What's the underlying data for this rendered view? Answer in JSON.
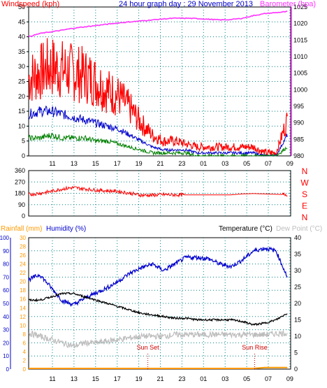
{
  "colors": {
    "wind": "#ff0000",
    "gust_fill": "#ff0000",
    "avg": "#0000cc",
    "low": "#008000",
    "baro": "#ff33ff",
    "dir": "#ff0000",
    "rain": "#ff9900",
    "hum": "#0000cc",
    "temp": "#000000",
    "dew": "#bdbdbd",
    "axis": "#0000cc",
    "grid": "#008080",
    "sun": "#cc0000"
  },
  "chart_data": [
    {
      "type": "line",
      "title": "24 hour graph day : 29 November 2013",
      "left_axis_label": "Windspeed (kph)",
      "right_axis_label": "Barometer (hpa)",
      "x_tick_labels": [
        "11",
        "13",
        "15",
        "17",
        "19",
        "21",
        "23",
        "01",
        "03",
        "05",
        "07",
        "09"
      ],
      "hours": [
        10,
        11,
        12,
        13,
        14,
        15,
        16,
        17,
        18,
        19,
        20,
        21,
        22,
        23,
        0,
        1,
        2,
        3,
        4,
        5,
        6,
        7,
        8,
        9
      ],
      "y_left_range": [
        0,
        50
      ],
      "y_left_ticks": [
        "0",
        "5",
        "10",
        "15",
        "20",
        "25",
        "30",
        "35",
        "40",
        "45",
        "50"
      ],
      "y_right_range": [
        980,
        1025
      ],
      "y_right_ticks": [
        "980",
        "985",
        "990",
        "995",
        "1000",
        "1005",
        "1010",
        "1015",
        "1020",
        "1025"
      ],
      "grid": true,
      "series": [
        {
          "key": "gust",
          "values": [
            26,
            28,
            30,
            29,
            28,
            27,
            25,
            22,
            20,
            16,
            11,
            7,
            5,
            5,
            4,
            3,
            3,
            3,
            3,
            3,
            3,
            1,
            1,
            12
          ]
        },
        {
          "key": "avg",
          "values": [
            14,
            15,
            15,
            14,
            13,
            12,
            11,
            10,
            9,
            7,
            5,
            3,
            2,
            2,
            2,
            1,
            1,
            1,
            1,
            1,
            1,
            0,
            0,
            7
          ]
        },
        {
          "key": "low",
          "values": [
            6,
            6,
            7,
            6,
            6,
            6,
            5,
            5,
            4,
            3,
            2,
            1,
            1,
            1,
            1,
            0,
            0,
            0,
            0,
            0,
            0,
            0,
            0,
            3
          ]
        },
        {
          "key": "baro",
          "values": [
            1016,
            1017,
            1017.5,
            1018,
            1018.6,
            1019,
            1019.4,
            1019.8,
            1020.2,
            1020.5,
            1020.8,
            1021.1,
            1021.4,
            1021.6,
            1021.6,
            1021.5,
            1021.3,
            1021.1,
            1021.2,
            1021.6,
            1022.4,
            1023,
            1023.3,
            1023.6
          ]
        }
      ]
    },
    {
      "type": "line",
      "x_tick_labels": [
        "11",
        "13",
        "15",
        "17",
        "19",
        "21",
        "23",
        "01",
        "03",
        "05",
        "07",
        "09"
      ],
      "hours": [
        10,
        11,
        12,
        13,
        14,
        15,
        16,
        17,
        18,
        19,
        20,
        21,
        22,
        23,
        0,
        1,
        2,
        3,
        4,
        5,
        6,
        7,
        8,
        9
      ],
      "y_range": [
        0,
        360
      ],
      "y_ticks": [
        "0",
        "90",
        "180",
        "270",
        "360"
      ],
      "compass_labels": [
        "N",
        "W",
        "S",
        "E",
        "N"
      ],
      "grid": true,
      "series": [
        {
          "key": "direction",
          "values": [
            170,
            180,
            195,
            215,
            225,
            215,
            205,
            200,
            195,
            180,
            165,
            165,
            170,
            168,
            168,
            168,
            168,
            168,
            168,
            175,
            178,
            175,
            172,
            170
          ]
        }
      ]
    },
    {
      "type": "line",
      "legend_rain": "Rainfall (mm)",
      "legend_humidity": "Humidity (%)",
      "legend_temperature": "Temperature (°C)",
      "legend_dew": "Dew Point (°C)",
      "x_tick_labels": [
        "11",
        "13",
        "15",
        "17",
        "19",
        "21",
        "23",
        "01",
        "03",
        "05",
        "07",
        "09"
      ],
      "hours": [
        10,
        11,
        12,
        13,
        14,
        15,
        16,
        17,
        18,
        19,
        20,
        21,
        22,
        23,
        0,
        1,
        2,
        3,
        4,
        5,
        6,
        7,
        8,
        9
      ],
      "humidity_range": [
        0,
        100
      ],
      "humidity_ticks": [
        "0",
        "10",
        "20",
        "30",
        "40",
        "50",
        "60",
        "70",
        "80",
        "90",
        "100"
      ],
      "rain_range": [
        0,
        30
      ],
      "rain_ticks": [
        "0",
        "2",
        "4",
        "6",
        "8",
        "10",
        "12",
        "14",
        "16",
        "18",
        "20",
        "22",
        "24",
        "26",
        "28",
        "30"
      ],
      "temp_range": [
        0,
        40
      ],
      "temp_ticks": [
        "0",
        "5",
        "10",
        "15",
        "20",
        "25",
        "30",
        "35",
        "40"
      ],
      "grid": true,
      "annotations": [
        {
          "text": "Sun Set",
          "hour": 20.6
        },
        {
          "text": "Sun Rise",
          "hour": 6.1
        }
      ],
      "series": [
        {
          "key": "humidity",
          "values": [
            68,
            72,
            62,
            52,
            49,
            54,
            58,
            62,
            67,
            73,
            77,
            80,
            75,
            80,
            85,
            85,
            84,
            80,
            78,
            83,
            90,
            92,
            90,
            70
          ]
        },
        {
          "key": "temperature",
          "values": [
            21,
            21,
            22,
            23,
            23,
            22,
            21,
            20,
            19,
            18,
            17,
            16.5,
            16,
            15.5,
            15.5,
            15,
            15,
            15,
            15,
            14.5,
            13.5,
            14,
            15,
            17
          ]
        },
        {
          "key": "dewpoint",
          "values": [
            11,
            10,
            9,
            8,
            7,
            8,
            8,
            8.5,
            9,
            9.5,
            10,
            10,
            10,
            10.5,
            10.5,
            10.5,
            10.5,
            10.5,
            10.5,
            10.5,
            10.5,
            10.5,
            10.8,
            11
          ]
        },
        {
          "key": "rain",
          "values": [
            0,
            0,
            0,
            0,
            0,
            0,
            0,
            0,
            0,
            0,
            0,
            0,
            0,
            0,
            0,
            0,
            0,
            0,
            0,
            0,
            0,
            0.2,
            0.2,
            0.2
          ]
        }
      ]
    }
  ]
}
